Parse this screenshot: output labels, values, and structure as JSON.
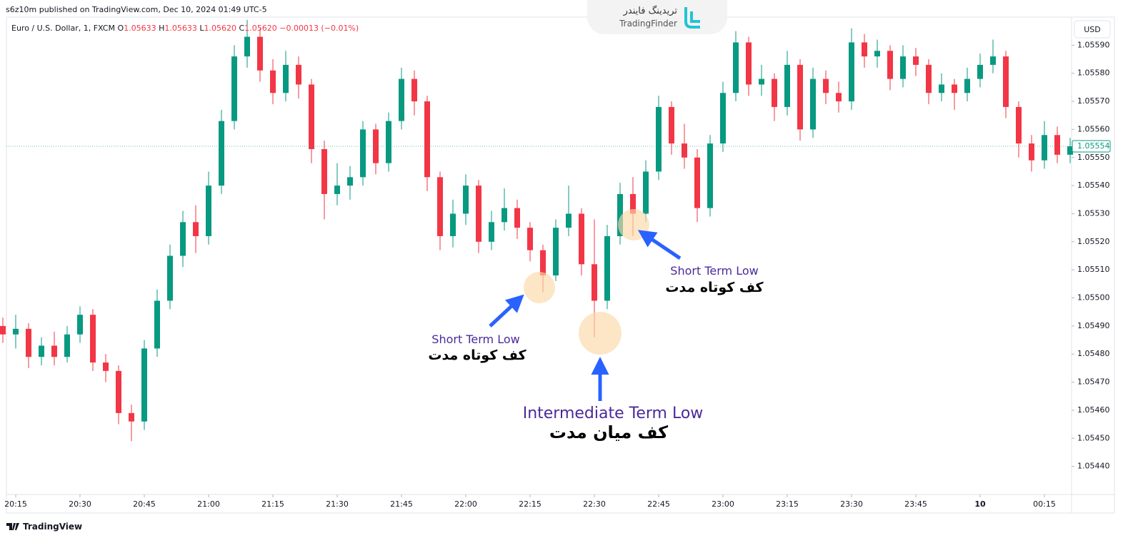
{
  "header": {
    "published": "s6z10m published on TradingView.com, Dec 10, 2024 01:49 UTC-5",
    "logo_fa": "تریدینگ فایندر",
    "logo_en": "TradingFinder"
  },
  "chart_data": {
    "type": "candlestick",
    "legend": {
      "symbol": "Euro / U.S. Dollar, 1, FXCM",
      "o": "O",
      "o_value": "1.05633",
      "h": "H",
      "h_value": "1.05633",
      "l": "L",
      "l_value": "1.05620",
      "c": "C",
      "c_value": "1.05620",
      "change": "−0.00013 (−0.01%)"
    },
    "currency": "USD",
    "up_color": "#089981",
    "down_color": "#f23645",
    "open": [
      1.0549,
      1.05487,
      1.05489,
      1.05479,
      1.05483,
      1.05479,
      1.05487,
      1.05494,
      1.05477,
      1.05474,
      1.05459,
      1.05456,
      1.05482,
      1.05499,
      1.05515,
      1.05527,
      1.05522,
      1.0554,
      1.05563,
      1.05586,
      1.05593,
      1.05581,
      1.05573,
      1.05583,
      1.05576,
      1.05553,
      1.05537,
      1.0554,
      1.05543,
      1.0556,
      1.05548,
      1.05563,
      1.05578,
      1.0557,
      1.05543,
      1.05522,
      1.0553,
      1.0554,
      1.0552,
      1.05527,
      1.05532,
      1.05525,
      1.05517,
      1.05508,
      1.05525,
      1.0553,
      1.05512,
      1.05499,
      1.05522,
      1.05537,
      1.0553,
      1.05545,
      1.05568,
      1.05555,
      1.0555,
      1.05532,
      1.05555,
      1.05573,
      1.05591,
      1.05576,
      1.05578,
      1.05568,
      1.05583,
      1.0556,
      1.05578,
      1.05573,
      1.0557,
      1.05591,
      1.05586,
      1.05588,
      1.05578,
      1.05586,
      1.05583,
      1.05573,
      1.05576,
      1.05573,
      1.05578,
      1.05583,
      1.05586,
      1.05568,
      1.05555,
      1.05549,
      1.05558,
      1.05551
    ],
    "high": [
      1.05493,
      1.05494,
      1.05491,
      1.05486,
      1.05488,
      1.0549,
      1.05497,
      1.05496,
      1.0548,
      1.05476,
      1.05462,
      1.05485,
      1.05503,
      1.05519,
      1.05531,
      1.05533,
      1.05545,
      1.05567,
      1.0559,
      1.05599,
      1.05596,
      1.05585,
      1.05588,
      1.05586,
      1.05578,
      1.05556,
      1.05548,
      1.05547,
      1.05563,
      1.05562,
      1.05566,
      1.05582,
      1.05581,
      1.05572,
      1.05545,
      1.05535,
      1.05544,
      1.05542,
      1.05531,
      1.05539,
      1.05535,
      1.05527,
      1.05519,
      1.05528,
      1.0554,
      1.05532,
      1.05528,
      1.05526,
      1.05541,
      1.05543,
      1.05549,
      1.05572,
      1.0557,
      1.05562,
      1.05553,
      1.05558,
      1.05577,
      1.05595,
      1.05593,
      1.05583,
      1.0558,
      1.05588,
      1.05585,
      1.05582,
      1.05581,
      1.05577,
      1.05596,
      1.05594,
      1.05592,
      1.0559,
      1.0559,
      1.05589,
      1.05585,
      1.0558,
      1.05578,
      1.05582,
      1.05587,
      1.05592,
      1.05588,
      1.0557,
      1.05558,
      1.05563,
      1.05561,
      1.05557
    ],
    "low": [
      1.05484,
      1.05482,
      1.05475,
      1.05476,
      1.05476,
      1.05477,
      1.05484,
      1.05474,
      1.0547,
      1.05455,
      1.05449,
      1.05453,
      1.05479,
      1.05496,
      1.05511,
      1.05516,
      1.05519,
      1.05537,
      1.0556,
      1.05582,
      1.05577,
      1.05569,
      1.0557,
      1.05571,
      1.05548,
      1.05528,
      1.05533,
      1.05535,
      1.0554,
      1.05544,
      1.05545,
      1.0556,
      1.05565,
      1.05538,
      1.05517,
      1.05518,
      1.05526,
      1.05516,
      1.05517,
      1.05524,
      1.05521,
      1.05513,
      1.05502,
      1.05506,
      1.05522,
      1.05508,
      1.05486,
      1.05496,
      1.05519,
      1.05522,
      1.05527,
      1.05542,
      1.05551,
      1.05546,
      1.05527,
      1.05529,
      1.05552,
      1.0557,
      1.05572,
      1.05572,
      1.05563,
      1.05565,
      1.05556,
      1.05557,
      1.05569,
      1.05566,
      1.05567,
      1.05582,
      1.05582,
      1.05574,
      1.05575,
      1.05579,
      1.05569,
      1.0557,
      1.05567,
      1.0557,
      1.05575,
      1.0558,
      1.05564,
      1.0555,
      1.05545,
      1.05546,
      1.05548,
      1.05548
    ],
    "close": [
      1.05487,
      1.05489,
      1.05479,
      1.05483,
      1.05479,
      1.05487,
      1.05494,
      1.05477,
      1.05474,
      1.05459,
      1.05456,
      1.05482,
      1.05499,
      1.05515,
      1.05527,
      1.05522,
      1.0554,
      1.05563,
      1.05586,
      1.05593,
      1.05581,
      1.05573,
      1.05583,
      1.05576,
      1.05553,
      1.05537,
      1.0554,
      1.05543,
      1.0556,
      1.05548,
      1.05563,
      1.05578,
      1.0557,
      1.05543,
      1.05522,
      1.0553,
      1.0554,
      1.0552,
      1.05527,
      1.05532,
      1.05525,
      1.05517,
      1.05508,
      1.05525,
      1.0553,
      1.05512,
      1.05499,
      1.05522,
      1.05537,
      1.0553,
      1.05545,
      1.05568,
      1.05555,
      1.0555,
      1.05532,
      1.05555,
      1.05573,
      1.05591,
      1.05576,
      1.05578,
      1.05568,
      1.05583,
      1.0556,
      1.05578,
      1.05573,
      1.0557,
      1.05591,
      1.05586,
      1.05588,
      1.05578,
      1.05586,
      1.05583,
      1.05573,
      1.05576,
      1.05573,
      1.05578,
      1.05583,
      1.05586,
      1.05568,
      1.05555,
      1.05549,
      1.05558,
      1.05551,
      1.05554
    ],
    "ylim": [
      1.0543,
      1.056
    ],
    "yticks": [
      {
        "value": 1.0544,
        "label": "1.05440"
      },
      {
        "value": 1.0545,
        "label": "1.05450"
      },
      {
        "value": 1.0546,
        "label": "1.05460"
      },
      {
        "value": 1.0547,
        "label": "1.05470"
      },
      {
        "value": 1.0548,
        "label": "1.05480"
      },
      {
        "value": 1.0549,
        "label": "1.05490"
      },
      {
        "value": 1.055,
        "label": "1.05500"
      },
      {
        "value": 1.0551,
        "label": "1.05510"
      },
      {
        "value": 1.0552,
        "label": "1.05520"
      },
      {
        "value": 1.0553,
        "label": "1.05530"
      },
      {
        "value": 1.0554,
        "label": "1.05540"
      },
      {
        "value": 1.0555,
        "label": "1.05550"
      },
      {
        "value": 1.0556,
        "label": "1.05560"
      },
      {
        "value": 1.0557,
        "label": "1.05570"
      },
      {
        "value": 1.0558,
        "label": "1.05580"
      },
      {
        "value": 1.0559,
        "label": "1.05590"
      }
    ],
    "xticks": [
      {
        "value": 1,
        "label": "20:15"
      },
      {
        "value": 6,
        "label": "20:30"
      },
      {
        "value": 11,
        "label": "20:45"
      },
      {
        "value": 16,
        "label": "21:00"
      },
      {
        "value": 21,
        "label": "21:15"
      },
      {
        "value": 26,
        "label": "21:30"
      },
      {
        "value": 31,
        "label": "21:45"
      },
      {
        "value": 36,
        "label": "22:00"
      },
      {
        "value": 41,
        "label": "22:15"
      },
      {
        "value": 46,
        "label": "22:30"
      },
      {
        "value": 51,
        "label": "22:45"
      },
      {
        "value": 56,
        "label": "23:00"
      },
      {
        "value": 61,
        "label": "23:15"
      },
      {
        "value": 66,
        "label": "23:30"
      },
      {
        "value": 71,
        "label": "23:45"
      },
      {
        "value": 76,
        "label": "10"
      },
      {
        "value": 81,
        "label": "00:15"
      }
    ],
    "grid": false,
    "last_price": 1.05554,
    "annotations": {
      "left_en": "Short Term Low",
      "left_fa": "کف کوتاه مدت",
      "mid_en": "Intermediate Term Low",
      "mid_fa": "کف میان مدت",
      "right_en": "Short Term Low",
      "right_fa": "کف کوتاه مدت"
    }
  },
  "footer": "TradingView"
}
